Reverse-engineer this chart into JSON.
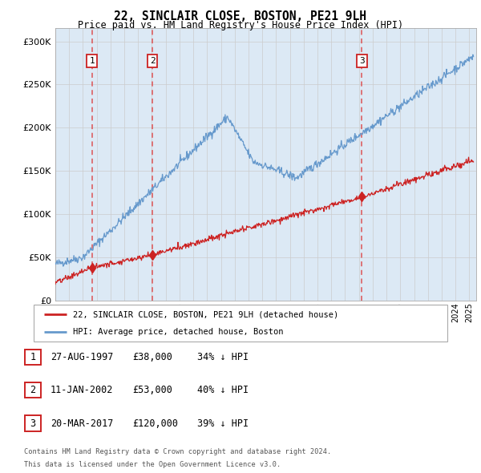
{
  "title": "22, SINCLAIR CLOSE, BOSTON, PE21 9LH",
  "subtitle": "Price paid vs. HM Land Registry's House Price Index (HPI)",
  "ytick_values": [
    0,
    50000,
    100000,
    150000,
    200000,
    250000,
    300000
  ],
  "ylim": [
    0,
    315000
  ],
  "xlim_start": 1995.0,
  "xlim_end": 2025.5,
  "sale_dates": [
    1997.65,
    2002.04,
    2017.22
  ],
  "sale_prices": [
    38000,
    53000,
    120000
  ],
  "sale_labels": [
    "1",
    "2",
    "3"
  ],
  "legend_red": "22, SINCLAIR CLOSE, BOSTON, PE21 9LH (detached house)",
  "legend_blue": "HPI: Average price, detached house, Boston",
  "table_rows": [
    [
      "1",
      "27-AUG-1997",
      "£38,000",
      "34% ↓ HPI"
    ],
    [
      "2",
      "11-JAN-2002",
      "£53,000",
      "40% ↓ HPI"
    ],
    [
      "3",
      "20-MAR-2017",
      "£120,000",
      "39% ↓ HPI"
    ]
  ],
  "footnote1": "Contains HM Land Registry data © Crown copyright and database right 2024.",
  "footnote2": "This data is licensed under the Open Government Licence v3.0.",
  "hpi_color": "#6699cc",
  "price_color": "#cc2222",
  "bg_color": "#dce9f5",
  "plot_bg": "#ffffff",
  "vline_color": "#dd4444",
  "grid_color": "#cccccc"
}
